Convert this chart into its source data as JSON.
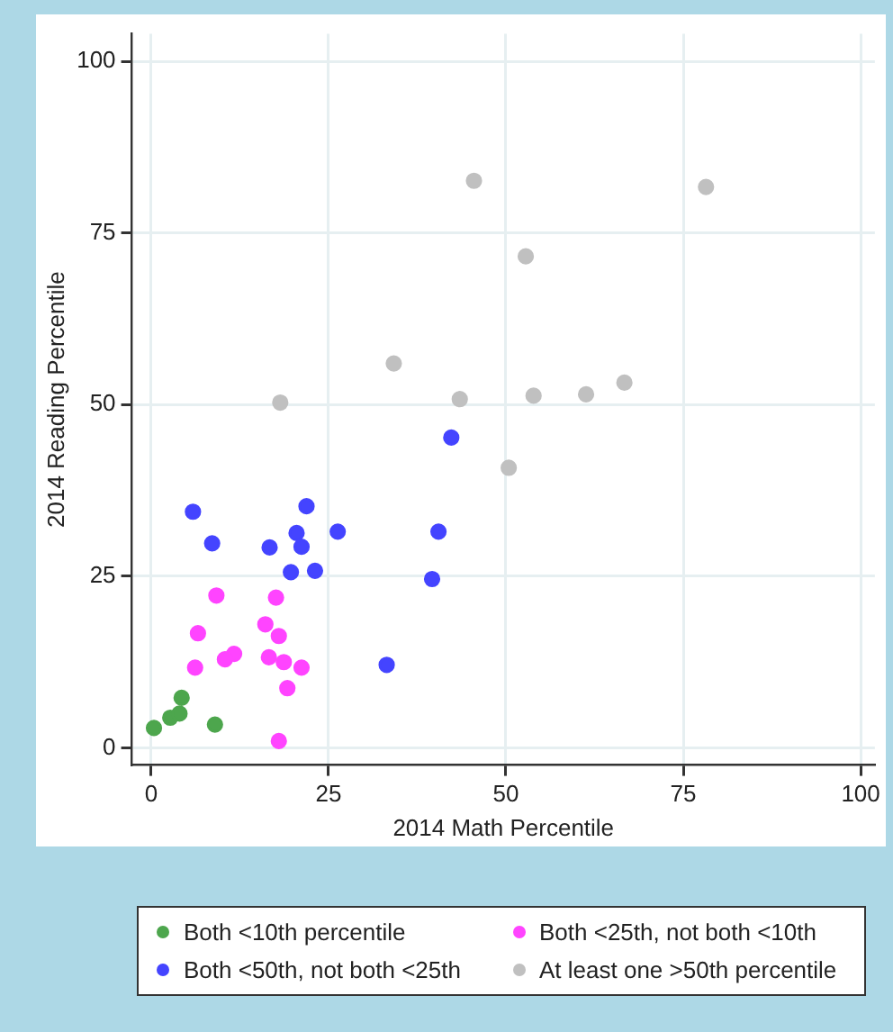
{
  "chart_data": {
    "type": "scatter",
    "xlabel": "2014 Math Percentile",
    "ylabel": "2014 Reading Percentile",
    "xlim": [
      -2.7,
      102
    ],
    "ylim": [
      -2.5,
      104
    ],
    "xticks": [
      0,
      25,
      50,
      75,
      100
    ],
    "yticks": [
      0,
      25,
      50,
      75,
      100
    ],
    "grid": true,
    "legend": "bottom",
    "marker": "circle",
    "series": [
      {
        "name": "Both <10th percentile",
        "color": "#4da64d",
        "x": [
          4.3,
          2.7,
          4.0,
          0.4,
          9.0
        ],
        "values": [
          7.3,
          4.4,
          5.0,
          2.9,
          3.4
        ]
      },
      {
        "name": "Both <25th, not both <10th",
        "color": "#ff44ff",
        "x": [
          9.2,
          17.6,
          16.1,
          6.6,
          18.0,
          11.7,
          10.4,
          16.6,
          18.7,
          6.2,
          21.2,
          19.2,
          18.0
        ],
        "values": [
          22.2,
          21.9,
          18.0,
          16.7,
          16.3,
          13.7,
          12.9,
          13.2,
          12.5,
          11.7,
          11.7,
          8.7,
          1.0
        ]
      },
      {
        "name": "Both <50th, not both <25th",
        "color": "#4444ff",
        "x": [
          5.9,
          21.9,
          8.6,
          16.7,
          20.5,
          21.2,
          26.3,
          40.5,
          19.7,
          23.1,
          39.6,
          33.2,
          42.3
        ],
        "values": [
          34.4,
          35.2,
          29.8,
          29.2,
          31.3,
          29.3,
          31.5,
          31.5,
          25.6,
          25.8,
          24.6,
          12.1,
          45.2
        ]
      },
      {
        "name": "At least one >50th percentile",
        "color": "#c0c0c0",
        "x": [
          45.5,
          78.2,
          52.8,
          34.2,
          18.2,
          43.5,
          53.9,
          61.3,
          66.7,
          50.4
        ],
        "values": [
          82.6,
          81.7,
          71.6,
          56.0,
          50.3,
          50.8,
          51.3,
          51.5,
          53.2,
          40.8
        ]
      }
    ]
  }
}
